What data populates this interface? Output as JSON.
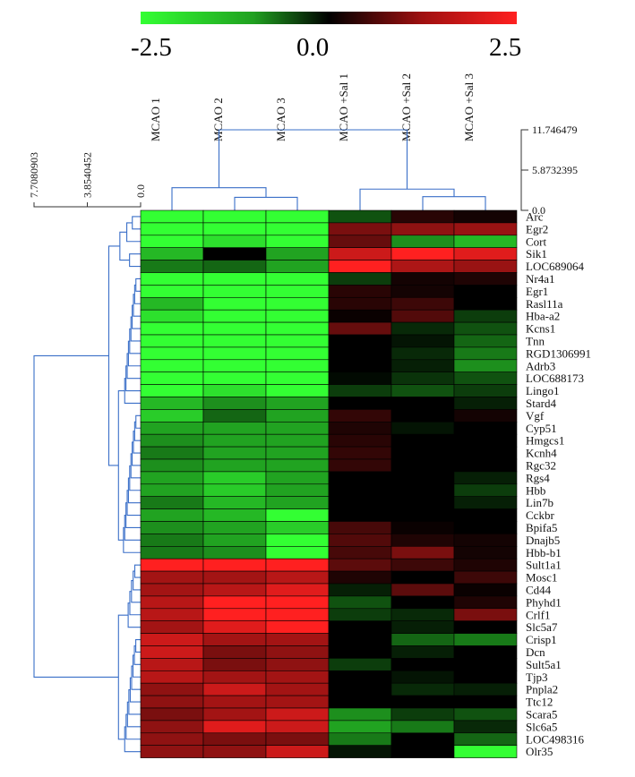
{
  "chart_data": {
    "type": "heatmap",
    "color_scale": {
      "min_label": "-2.5",
      "mid_label": "0.0",
      "max_label": "2.5",
      "min": -2.5,
      "mid": 0.0,
      "max": 2.5,
      "low_color": "#33ff33",
      "mid_color": "#000000",
      "high_color": "#ff2020"
    },
    "columns": [
      "MCAO 1",
      "MCAO 2",
      "MCAO 3",
      "MCAO +Sal 1",
      "MCAO +Sal 2",
      "MCAO +Sal 3"
    ],
    "rows": [
      "Arc",
      "Egr2",
      "Cort",
      "Sik1",
      "LOC689064",
      "Nr4a1",
      "Egr1",
      "Rasl11a",
      "Hba-a2",
      "Kcns1",
      "Tnn",
      "RGD1306991",
      "Adrb3",
      "LOC688173",
      "Lingo1",
      "Stard4",
      "Vgf",
      "Cyp51",
      "Hmgcs1",
      "Kcnh4",
      "Rgc32",
      "Rgs4",
      "Hbb",
      "Lin7b",
      "Cckbr",
      "Bpifa5",
      "Dnajb5",
      "Hbb-b1",
      "Sult1a1",
      "Mosc1",
      "Cd44",
      "Phyhd1",
      "Crlf1",
      "Slc5a7",
      "Crisp1",
      "Dcn",
      "Sult5a1",
      "Tjp3",
      "Pnpla2",
      "Ttc12",
      "Scara5",
      "Slc6a5",
      "LOC498316",
      "Olr35"
    ],
    "values": [
      [
        -2.5,
        -2.5,
        -2.5,
        -0.8,
        0.4,
        0.2
      ],
      [
        -2.5,
        -2.5,
        -2.5,
        1.2,
        1.4,
        1.5
      ],
      [
        -2.5,
        -2.2,
        -2.5,
        1.0,
        -1.4,
        -1.8
      ],
      [
        -1.8,
        0.0,
        -1.6,
        2.0,
        2.5,
        2.2
      ],
      [
        -1.2,
        -1.0,
        -1.6,
        2.5,
        1.7,
        1.5
      ],
      [
        -2.5,
        -2.5,
        -2.5,
        -0.6,
        0.2,
        0.3
      ],
      [
        -2.5,
        -2.5,
        -2.5,
        0.4,
        0.2,
        0.0
      ],
      [
        -1.8,
        -2.5,
        -2.5,
        0.4,
        0.6,
        0.0
      ],
      [
        -2.2,
        -2.5,
        -2.5,
        0.1,
        0.8,
        -0.6
      ],
      [
        -2.5,
        -2.5,
        -2.5,
        1.0,
        -0.4,
        -0.8
      ],
      [
        -2.5,
        -2.5,
        -2.5,
        0.0,
        -0.2,
        -1.0
      ],
      [
        -2.5,
        -2.5,
        -2.5,
        0.0,
        -0.4,
        -1.2
      ],
      [
        -2.5,
        -2.5,
        -2.5,
        0.0,
        -0.3,
        -1.4
      ],
      [
        -2.5,
        -2.5,
        -2.5,
        -0.1,
        -0.5,
        -0.8
      ],
      [
        -2.5,
        -2.2,
        -2.5,
        -0.6,
        -0.8,
        -0.6
      ],
      [
        -1.8,
        -1.4,
        -1.6,
        0.0,
        0.0,
        -0.3
      ],
      [
        -2.0,
        -1.0,
        -1.6,
        0.5,
        0.0,
        0.2
      ],
      [
        -1.6,
        -1.6,
        -1.6,
        0.3,
        -0.2,
        0.0
      ],
      [
        -1.4,
        -1.6,
        -1.6,
        0.4,
        0.0,
        0.0
      ],
      [
        -1.2,
        -1.6,
        -1.6,
        0.5,
        0.0,
        0.0
      ],
      [
        -1.4,
        -1.6,
        -1.6,
        0.5,
        0.0,
        0.0
      ],
      [
        -1.6,
        -2.0,
        -1.6,
        0.0,
        0.0,
        -0.3
      ],
      [
        -1.6,
        -2.0,
        -1.6,
        0.0,
        0.0,
        -0.6
      ],
      [
        -1.2,
        -1.8,
        -1.6,
        0.0,
        0.0,
        -0.3
      ],
      [
        -1.6,
        -1.8,
        -2.5,
        0.0,
        0.0,
        0.0
      ],
      [
        -1.4,
        -1.6,
        -2.0,
        0.7,
        0.1,
        0.0
      ],
      [
        -1.2,
        -1.6,
        -2.5,
        0.8,
        0.3,
        0.2
      ],
      [
        -1.2,
        -1.4,
        -2.5,
        0.7,
        1.2,
        0.2
      ],
      [
        2.5,
        2.5,
        2.5,
        0.9,
        0.6,
        0.3
      ],
      [
        1.6,
        1.6,
        1.8,
        0.3,
        0.0,
        0.6
      ],
      [
        1.6,
        1.8,
        2.2,
        -0.3,
        0.9,
        0.1
      ],
      [
        1.8,
        2.5,
        2.5,
        -0.8,
        0.0,
        0.3
      ],
      [
        1.8,
        2.5,
        2.5,
        -0.6,
        -0.4,
        1.2
      ],
      [
        1.6,
        2.2,
        2.5,
        0.0,
        -0.3,
        0.0
      ],
      [
        2.0,
        1.6,
        1.6,
        0.0,
        -1.0,
        -1.2
      ],
      [
        2.0,
        1.2,
        1.4,
        0.0,
        -0.3,
        0.0
      ],
      [
        1.8,
        1.2,
        1.4,
        -0.6,
        0.0,
        0.0
      ],
      [
        1.8,
        1.6,
        1.6,
        0.0,
        -0.2,
        0.0
      ],
      [
        1.4,
        2.0,
        1.6,
        0.0,
        -0.4,
        -0.3
      ],
      [
        1.4,
        1.6,
        1.6,
        0.0,
        0.0,
        0.0
      ],
      [
        1.2,
        1.6,
        2.0,
        -1.4,
        -0.6,
        -0.8
      ],
      [
        1.4,
        2.2,
        2.0,
        -1.6,
        -1.2,
        -0.4
      ],
      [
        1.4,
        1.2,
        1.2,
        -1.2,
        0.0,
        -1.0
      ],
      [
        1.4,
        1.4,
        2.0,
        -0.2,
        0.0,
        -2.5
      ]
    ],
    "column_dendrogram": {
      "scale_labels": [
        "11.746479",
        "5.8732395",
        "0.0"
      ],
      "scale_values": [
        11.746479,
        5.8732395,
        0.0
      ]
    },
    "row_dendrogram": {
      "scale_labels": [
        "7.7080903",
        "3.8540452",
        "0.0"
      ],
      "scale_values": [
        7.7080903,
        3.8540452,
        0.0
      ]
    }
  }
}
